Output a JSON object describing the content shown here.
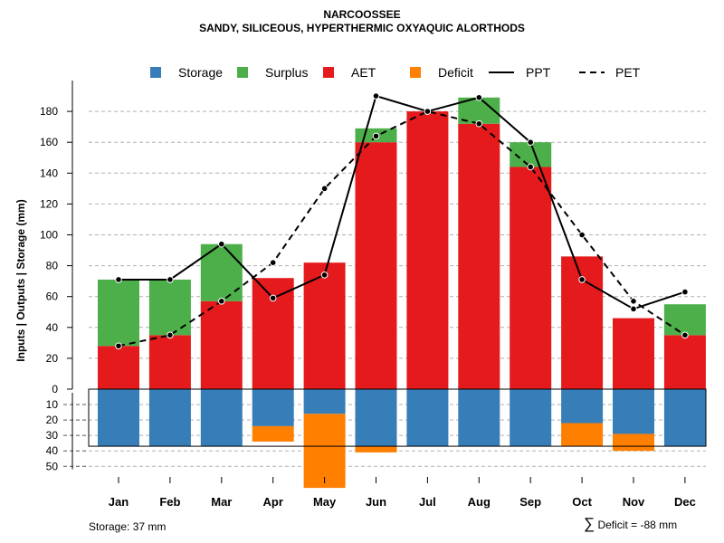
{
  "chart_data": {
    "type": "bar",
    "title": "NARCOOSSEE",
    "subtitle": "SANDY, SILICEOUS, HYPERTHERMIC OXYAQUIC ALORTHODS",
    "ylabel": "Inputs | Outputs | Storage    (mm)",
    "xlabel": "",
    "categories": [
      "Jan",
      "Feb",
      "Mar",
      "Apr",
      "May",
      "Jun",
      "Jul",
      "Aug",
      "Sep",
      "Oct",
      "Nov",
      "Dec"
    ],
    "ylim": [
      -60,
      190
    ],
    "upper_ticks": [
      0,
      20,
      40,
      60,
      80,
      100,
      120,
      140,
      160,
      180
    ],
    "lower_ticks": [
      10,
      20,
      30,
      40,
      50
    ],
    "grid": true,
    "legend_position": "top",
    "series": [
      {
        "name": "Storage",
        "kind": "bar-below",
        "color": "#377EB8",
        "values": [
          37,
          37,
          37,
          24,
          16,
          37,
          37,
          37,
          37,
          22,
          29,
          37
        ]
      },
      {
        "name": "Surplus",
        "kind": "bar-stacked",
        "color": "#4DAF4A",
        "values": [
          43,
          36,
          37,
          0,
          0,
          9,
          0,
          17,
          16,
          0,
          0,
          20
        ]
      },
      {
        "name": "AET",
        "kind": "bar",
        "color": "#E41A1C",
        "values": [
          28,
          35,
          57,
          72,
          82,
          160,
          180,
          172,
          144,
          86,
          46,
          35
        ]
      },
      {
        "name": "Deficit",
        "kind": "bar-below",
        "color": "#FF7F00",
        "values": [
          0,
          0,
          0,
          10,
          48,
          4,
          0,
          0,
          0,
          15,
          11,
          0
        ]
      },
      {
        "name": "PPT",
        "kind": "line-solid",
        "color": "#000000",
        "values": [
          71,
          71,
          94,
          59,
          74,
          190,
          180,
          189,
          160,
          71,
          52,
          63
        ]
      },
      {
        "name": "PET",
        "kind": "line-dashed",
        "color": "#000000",
        "values": [
          28,
          35,
          57,
          82,
          130,
          164,
          180,
          172,
          144,
          100,
          57,
          35
        ]
      }
    ],
    "storage_capacity": 37
  },
  "footer": {
    "storage_text": "Storage: 37 mm",
    "deficit_symbol": "∑",
    "deficit_text": "Deficit = -88 mm"
  }
}
